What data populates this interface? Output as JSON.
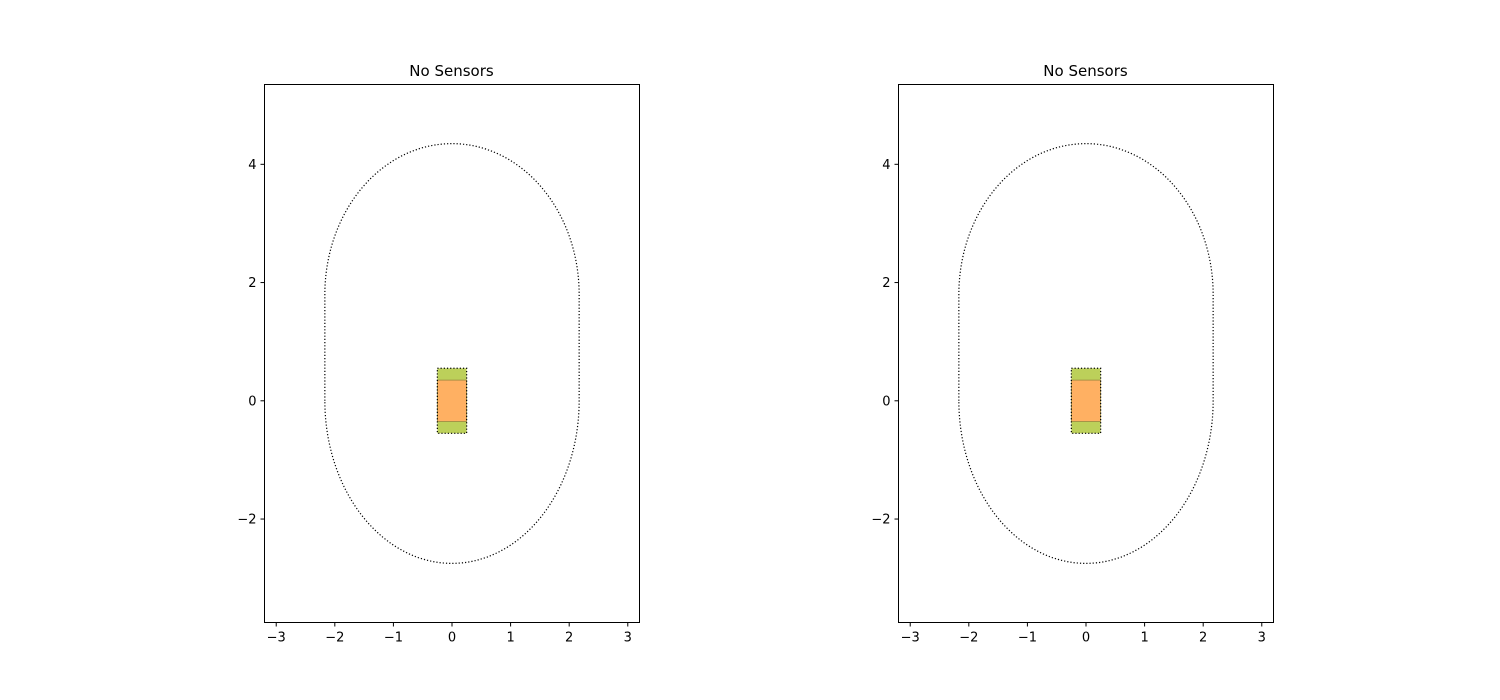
{
  "chart_data": [
    {
      "type": "scatter",
      "title": "No Sensors",
      "xlabel": "",
      "ylabel": "",
      "xlim": [
        -3.2,
        3.2
      ],
      "ylim": [
        -3.75,
        5.35
      ],
      "xticks": [
        -3,
        -2,
        -1,
        0,
        1,
        2,
        3
      ],
      "xtick_labels": [
        "−3",
        "−2",
        "−1",
        "0",
        "1",
        "2",
        "3"
      ],
      "yticks": [
        -2,
        0,
        2,
        4
      ],
      "ytick_labels": [
        "−2",
        "0",
        "2",
        "4"
      ],
      "grid": false,
      "colors": {
        "green": "#bcd05a",
        "orange": "#ffb062",
        "edge": "#000000"
      },
      "shapes": {
        "boundary": {
          "style": "dotted",
          "center_x": 0.0,
          "half_width": 2.17,
          "straight_y": [
            0.0,
            1.8
          ],
          "bottom_y": -2.75,
          "top_y": 4.35
        },
        "green_rect": {
          "x": [
            -0.25,
            0.25
          ],
          "y": [
            -0.55,
            0.55
          ]
        },
        "orange_rect": {
          "x": [
            -0.25,
            0.25
          ],
          "y": [
            -0.35,
            0.35
          ]
        }
      }
    },
    {
      "type": "scatter",
      "title": "No Sensors",
      "xlabel": "",
      "ylabel": "",
      "xlim": [
        -3.2,
        3.2
      ],
      "ylim": [
        -3.75,
        5.35
      ],
      "xticks": [
        -3,
        -2,
        -1,
        0,
        1,
        2,
        3
      ],
      "xtick_labels": [
        "−3",
        "−2",
        "−1",
        "0",
        "1",
        "2",
        "3"
      ],
      "yticks": [
        -2,
        0,
        2,
        4
      ],
      "ytick_labels": [
        "−2",
        "0",
        "2",
        "4"
      ],
      "grid": false,
      "colors": {
        "green": "#bcd05a",
        "orange": "#ffb062",
        "edge": "#000000"
      },
      "shapes": {
        "boundary": {
          "style": "dotted",
          "center_x": 0.0,
          "half_width": 2.17,
          "straight_y": [
            0.0,
            1.8
          ],
          "bottom_y": -2.75,
          "top_y": 4.35
        },
        "green_rect": {
          "x": [
            -0.25,
            0.25
          ],
          "y": [
            -0.55,
            0.55
          ]
        },
        "orange_rect": {
          "x": [
            -0.25,
            0.25
          ],
          "y": [
            -0.35,
            0.35
          ]
        }
      }
    }
  ]
}
